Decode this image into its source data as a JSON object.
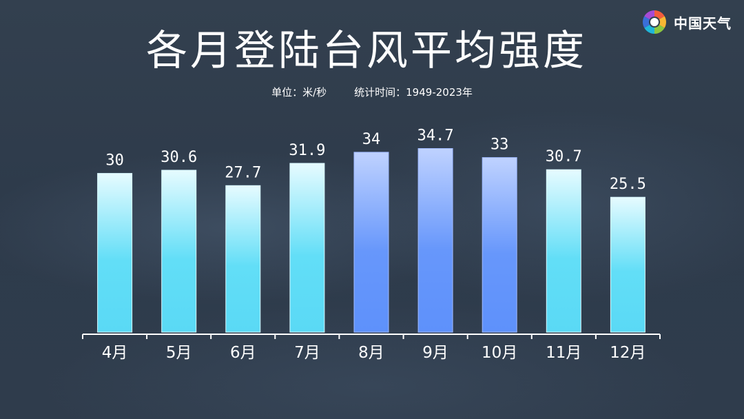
{
  "brand": {
    "name": "中国天气",
    "logo_icon": "china-weather-logo-icon"
  },
  "header": {
    "unit": "单位：米/秒",
    "period": "统计时间：1949-2023年"
  },
  "chart_data": {
    "type": "bar",
    "title": "各月登陆台风平均强度",
    "categories": [
      "4月",
      "5月",
      "6月",
      "7月",
      "8月",
      "9月",
      "10月",
      "11月",
      "12月"
    ],
    "values": [
      30,
      30.6,
      27.7,
      31.9,
      34,
      34.7,
      33,
      30.7,
      25.5
    ],
    "value_labels": [
      "30",
      "30.6",
      "27.7",
      "31.9",
      "34",
      "34.7",
      "33",
      "30.7",
      "25.5"
    ],
    "highlighted_categories": [
      "8月",
      "9月",
      "10月"
    ],
    "xlabel": "",
    "ylabel": "",
    "y_axis_visible": false,
    "grid": false,
    "legend": "none",
    "colors": {
      "normal_top": "#e6fbff",
      "normal_bottom": "#5ddcf6",
      "highlight_top": "#bfd2ff",
      "highlight_bottom": "#5e91fb",
      "axis": "#ffffff",
      "text": "#ffffff"
    }
  }
}
